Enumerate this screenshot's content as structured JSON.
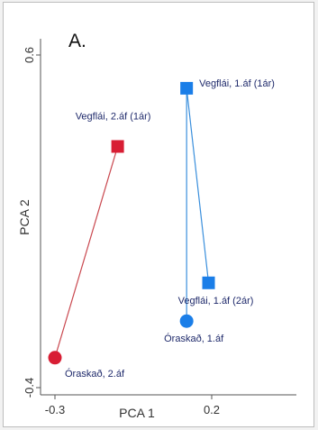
{
  "chart_data": {
    "type": "scatter",
    "panel_label": "A.",
    "xlabel": "PCA 1",
    "ylabel": "PCA 2",
    "xlim": [
      -0.3,
      0.2
    ],
    "ylim": [
      -0.4,
      0.6
    ],
    "xticks": [
      {
        "value": -0.3,
        "label": "-0.3"
      },
      {
        "value": 0.2,
        "label": "0.2"
      }
    ],
    "yticks": [
      {
        "value": -0.4,
        "label": "-0.4"
      },
      {
        "value": 0.6,
        "label": "0.6"
      }
    ],
    "grid": false,
    "points": [
      {
        "id": "vegflai-2af-1ar",
        "label": "Vegflái, 2.áf (1ár)",
        "x": -0.1,
        "y": 0.325,
        "marker": "square",
        "color": "#d81e34",
        "label_pos": "above"
      },
      {
        "id": "oraskad-2af",
        "label": "Óraskað, 2.áf",
        "x": -0.3,
        "y": -0.31,
        "marker": "circle",
        "color": "#d81e34",
        "label_pos": "below-right"
      },
      {
        "id": "vegflai-1af-1ar",
        "label": "Vegflái, 1.áf (1ár)",
        "x": 0.12,
        "y": 0.5,
        "marker": "square",
        "color": "#1a7ee8",
        "label_pos": "right"
      },
      {
        "id": "vegflai-1af-2ar",
        "label": "Vegflái, 1.áf (2ár)",
        "x": 0.19,
        "y": -0.085,
        "marker": "square",
        "color": "#1a7ee8",
        "label_pos": "below"
      },
      {
        "id": "oraskad-1af",
        "label": "Óraskað, 1.áf",
        "x": 0.12,
        "y": -0.2,
        "marker": "circle",
        "color": "#1a7ee8",
        "label_pos": "below"
      }
    ],
    "connections": [
      {
        "from": "oraskad-2af",
        "to": "vegflai-2af-1ar",
        "color": "#c9484f"
      },
      {
        "from": "oraskad-1af",
        "to": "vegflai-1af-1ar",
        "color": "#3a8fdc"
      },
      {
        "from": "vegflai-1af-1ar",
        "to": "vegflai-1af-2ar",
        "color": "#3a8fdc"
      }
    ]
  }
}
